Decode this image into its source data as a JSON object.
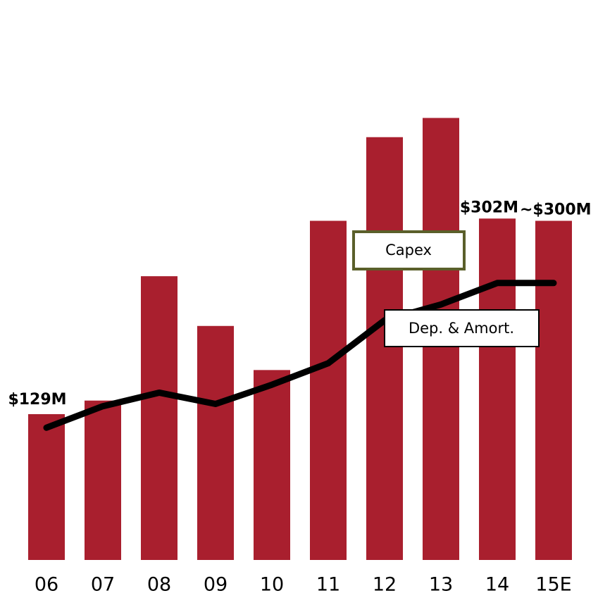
{
  "chart_data": {
    "type": "bar",
    "categories": [
      "06",
      "07",
      "08",
      "09",
      "10",
      "11",
      "12",
      "13",
      "14",
      "15E"
    ],
    "series": [
      {
        "name": "Capex",
        "color": "#a91f2e",
        "values": [
          129,
          141,
          251,
          207,
          168,
          300,
          374,
          391,
          302,
          300
        ],
        "value_labels": [
          "$129M",
          null,
          null,
          null,
          null,
          null,
          null,
          null,
          "$302M",
          "~$300M"
        ]
      },
      {
        "name": "Dep. & Amort.",
        "color": "#000000",
        "type": "line",
        "values": [
          117,
          136,
          148,
          138,
          155,
          174,
          212,
          226,
          245,
          245
        ]
      }
    ],
    "ylim": [
      0,
      400
    ]
  }
}
